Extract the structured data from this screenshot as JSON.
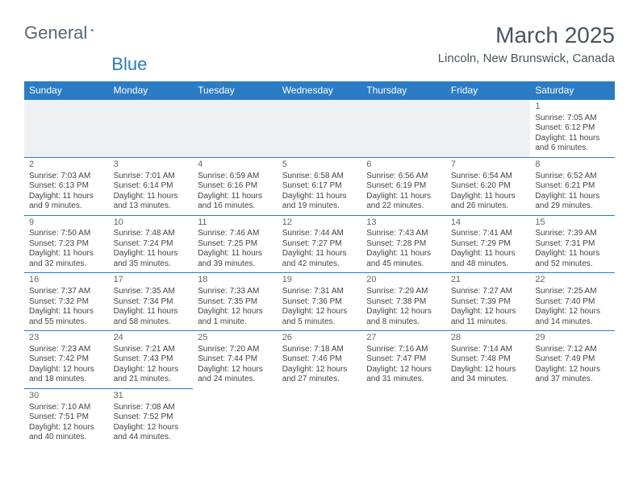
{
  "brand": {
    "word1": "General",
    "word2": "Blue",
    "logo_accent": "#2b7cc4",
    "logo_dark": "#3a4750"
  },
  "title": {
    "month": "March 2025",
    "location": "Lincoln, New Brunswick, Canada"
  },
  "weekdays": [
    "Sunday",
    "Monday",
    "Tuesday",
    "Wednesday",
    "Thursday",
    "Friday",
    "Saturday"
  ],
  "colors": {
    "header_bg": "#2b7cc4",
    "header_fg": "#ffffff",
    "rule": "#2b7cc4",
    "empty_bg": "#eef0f2",
    "text": "#444444",
    "daynum": "#666666"
  },
  "weeks": [
    [
      {
        "empty": true
      },
      {
        "empty": true
      },
      {
        "empty": true
      },
      {
        "empty": true
      },
      {
        "empty": true
      },
      {
        "empty": true
      },
      {
        "day": "1",
        "sunrise": "Sunrise: 7:05 AM",
        "sunset": "Sunset: 6:12 PM",
        "dl1": "Daylight: 11 hours",
        "dl2": "and 6 minutes."
      }
    ],
    [
      {
        "day": "2",
        "sunrise": "Sunrise: 7:03 AM",
        "sunset": "Sunset: 6:13 PM",
        "dl1": "Daylight: 11 hours",
        "dl2": "and 9 minutes."
      },
      {
        "day": "3",
        "sunrise": "Sunrise: 7:01 AM",
        "sunset": "Sunset: 6:14 PM",
        "dl1": "Daylight: 11 hours",
        "dl2": "and 13 minutes."
      },
      {
        "day": "4",
        "sunrise": "Sunrise: 6:59 AM",
        "sunset": "Sunset: 6:16 PM",
        "dl1": "Daylight: 11 hours",
        "dl2": "and 16 minutes."
      },
      {
        "day": "5",
        "sunrise": "Sunrise: 6:58 AM",
        "sunset": "Sunset: 6:17 PM",
        "dl1": "Daylight: 11 hours",
        "dl2": "and 19 minutes."
      },
      {
        "day": "6",
        "sunrise": "Sunrise: 6:56 AM",
        "sunset": "Sunset: 6:19 PM",
        "dl1": "Daylight: 11 hours",
        "dl2": "and 22 minutes."
      },
      {
        "day": "7",
        "sunrise": "Sunrise: 6:54 AM",
        "sunset": "Sunset: 6:20 PM",
        "dl1": "Daylight: 11 hours",
        "dl2": "and 26 minutes."
      },
      {
        "day": "8",
        "sunrise": "Sunrise: 6:52 AM",
        "sunset": "Sunset: 6:21 PM",
        "dl1": "Daylight: 11 hours",
        "dl2": "and 29 minutes."
      }
    ],
    [
      {
        "day": "9",
        "sunrise": "Sunrise: 7:50 AM",
        "sunset": "Sunset: 7:23 PM",
        "dl1": "Daylight: 11 hours",
        "dl2": "and 32 minutes."
      },
      {
        "day": "10",
        "sunrise": "Sunrise: 7:48 AM",
        "sunset": "Sunset: 7:24 PM",
        "dl1": "Daylight: 11 hours",
        "dl2": "and 35 minutes."
      },
      {
        "day": "11",
        "sunrise": "Sunrise: 7:46 AM",
        "sunset": "Sunset: 7:25 PM",
        "dl1": "Daylight: 11 hours",
        "dl2": "and 39 minutes."
      },
      {
        "day": "12",
        "sunrise": "Sunrise: 7:44 AM",
        "sunset": "Sunset: 7:27 PM",
        "dl1": "Daylight: 11 hours",
        "dl2": "and 42 minutes."
      },
      {
        "day": "13",
        "sunrise": "Sunrise: 7:43 AM",
        "sunset": "Sunset: 7:28 PM",
        "dl1": "Daylight: 11 hours",
        "dl2": "and 45 minutes."
      },
      {
        "day": "14",
        "sunrise": "Sunrise: 7:41 AM",
        "sunset": "Sunset: 7:29 PM",
        "dl1": "Daylight: 11 hours",
        "dl2": "and 48 minutes."
      },
      {
        "day": "15",
        "sunrise": "Sunrise: 7:39 AM",
        "sunset": "Sunset: 7:31 PM",
        "dl1": "Daylight: 11 hours",
        "dl2": "and 52 minutes."
      }
    ],
    [
      {
        "day": "16",
        "sunrise": "Sunrise: 7:37 AM",
        "sunset": "Sunset: 7:32 PM",
        "dl1": "Daylight: 11 hours",
        "dl2": "and 55 minutes."
      },
      {
        "day": "17",
        "sunrise": "Sunrise: 7:35 AM",
        "sunset": "Sunset: 7:34 PM",
        "dl1": "Daylight: 11 hours",
        "dl2": "and 58 minutes."
      },
      {
        "day": "18",
        "sunrise": "Sunrise: 7:33 AM",
        "sunset": "Sunset: 7:35 PM",
        "dl1": "Daylight: 12 hours",
        "dl2": "and 1 minute."
      },
      {
        "day": "19",
        "sunrise": "Sunrise: 7:31 AM",
        "sunset": "Sunset: 7:36 PM",
        "dl1": "Daylight: 12 hours",
        "dl2": "and 5 minutes."
      },
      {
        "day": "20",
        "sunrise": "Sunrise: 7:29 AM",
        "sunset": "Sunset: 7:38 PM",
        "dl1": "Daylight: 12 hours",
        "dl2": "and 8 minutes."
      },
      {
        "day": "21",
        "sunrise": "Sunrise: 7:27 AM",
        "sunset": "Sunset: 7:39 PM",
        "dl1": "Daylight: 12 hours",
        "dl2": "and 11 minutes."
      },
      {
        "day": "22",
        "sunrise": "Sunrise: 7:25 AM",
        "sunset": "Sunset: 7:40 PM",
        "dl1": "Daylight: 12 hours",
        "dl2": "and 14 minutes."
      }
    ],
    [
      {
        "day": "23",
        "sunrise": "Sunrise: 7:23 AM",
        "sunset": "Sunset: 7:42 PM",
        "dl1": "Daylight: 12 hours",
        "dl2": "and 18 minutes."
      },
      {
        "day": "24",
        "sunrise": "Sunrise: 7:21 AM",
        "sunset": "Sunset: 7:43 PM",
        "dl1": "Daylight: 12 hours",
        "dl2": "and 21 minutes."
      },
      {
        "day": "25",
        "sunrise": "Sunrise: 7:20 AM",
        "sunset": "Sunset: 7:44 PM",
        "dl1": "Daylight: 12 hours",
        "dl2": "and 24 minutes."
      },
      {
        "day": "26",
        "sunrise": "Sunrise: 7:18 AM",
        "sunset": "Sunset: 7:46 PM",
        "dl1": "Daylight: 12 hours",
        "dl2": "and 27 minutes."
      },
      {
        "day": "27",
        "sunrise": "Sunrise: 7:16 AM",
        "sunset": "Sunset: 7:47 PM",
        "dl1": "Daylight: 12 hours",
        "dl2": "and 31 minutes."
      },
      {
        "day": "28",
        "sunrise": "Sunrise: 7:14 AM",
        "sunset": "Sunset: 7:48 PM",
        "dl1": "Daylight: 12 hours",
        "dl2": "and 34 minutes."
      },
      {
        "day": "29",
        "sunrise": "Sunrise: 7:12 AM",
        "sunset": "Sunset: 7:49 PM",
        "dl1": "Daylight: 12 hours",
        "dl2": "and 37 minutes."
      }
    ],
    [
      {
        "day": "30",
        "sunrise": "Sunrise: 7:10 AM",
        "sunset": "Sunset: 7:51 PM",
        "dl1": "Daylight: 12 hours",
        "dl2": "and 40 minutes."
      },
      {
        "day": "31",
        "sunrise": "Sunrise: 7:08 AM",
        "sunset": "Sunset: 7:52 PM",
        "dl1": "Daylight: 12 hours",
        "dl2": "and 44 minutes."
      },
      {
        "empty": true
      },
      {
        "empty": true
      },
      {
        "empty": true
      },
      {
        "empty": true
      },
      {
        "empty": true
      }
    ]
  ]
}
